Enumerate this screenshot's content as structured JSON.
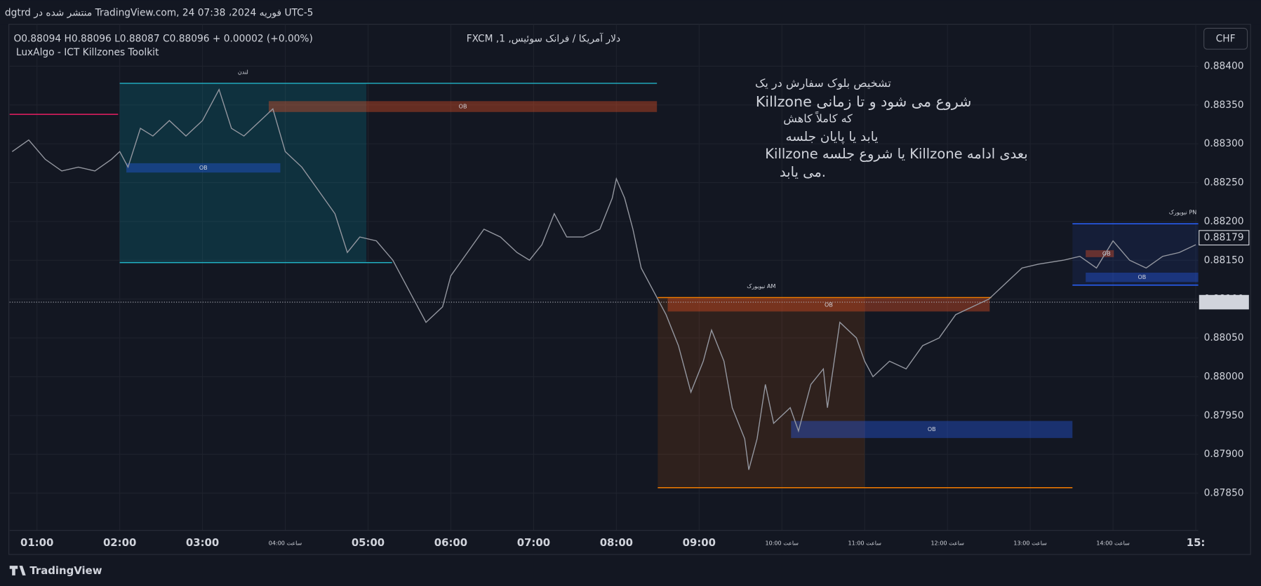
{
  "header": "dgtrd منتشر شده در TradingView.com, 24 فوریه 2024، 07:38 UTC-5",
  "symbol_title": "دلار آمریکا / فرانک سوئیس, 1, FXCM",
  "ohlc_text": "O0.88094 H0.88096 L0.88087 C0.88096 + 0.00002 (+0.00%)",
  "indicator": "LuxAlgo - ICT Killzones Toolkit",
  "currency": "CHF",
  "brand": "TradingView",
  "chart_data": {
    "type": "line",
    "color": "#9598a1",
    "annotation": [
      "تشخیص بلوک سفارش در یک",
      "Killzone شروع می شود و تا زمانی",
      "که کاملاً کاهش",
      "یابد یا پایان جلسه",
      "Killzone یا شروع جلسه Killzone بعدی ادامه",
      "می یابد."
    ],
    "x": [
      0.7,
      0.9,
      1.1,
      1.3,
      1.5,
      1.7,
      1.9,
      2.0,
      2.1,
      2.25,
      2.4,
      2.6,
      2.8,
      3.0,
      3.1,
      3.2,
      3.35,
      3.5,
      3.7,
      3.85,
      4.0,
      4.2,
      4.4,
      4.6,
      4.75,
      4.9,
      5.1,
      5.3,
      5.5,
      5.7,
      5.9,
      6.0,
      6.2,
      6.4,
      6.6,
      6.8,
      6.95,
      7.1,
      7.25,
      7.4,
      7.6,
      7.8,
      7.95,
      8.0,
      8.1,
      8.2,
      8.3,
      8.5,
      8.6,
      8.75,
      8.9,
      9.05,
      9.15,
      9.3,
      9.4,
      9.55,
      9.6,
      9.7,
      9.8,
      9.9,
      10.1,
      10.2,
      10.35,
      10.5,
      10.55,
      10.7,
      10.9,
      11.0,
      11.1,
      11.3,
      11.5,
      11.7,
      11.9,
      12.1,
      12.3,
      12.5,
      12.7,
      12.9,
      13.1,
      13.4,
      13.6,
      13.8,
      14.0,
      14.2,
      14.4,
      14.6,
      14.8,
      15.0
    ],
    "values": [
      0.8829,
      0.88305,
      0.8828,
      0.88265,
      0.8827,
      0.88265,
      0.8828,
      0.8829,
      0.8827,
      0.8832,
      0.8831,
      0.8833,
      0.8831,
      0.8833,
      0.8835,
      0.8837,
      0.8832,
      0.8831,
      0.8833,
      0.88345,
      0.8829,
      0.8827,
      0.8824,
      0.8821,
      0.8816,
      0.8818,
      0.88175,
      0.8815,
      0.8811,
      0.8807,
      0.8809,
      0.8813,
      0.8816,
      0.8819,
      0.8818,
      0.8816,
      0.8815,
      0.8817,
      0.8821,
      0.8818,
      0.8818,
      0.8819,
      0.8823,
      0.88255,
      0.8823,
      0.8819,
      0.8814,
      0.881,
      0.8808,
      0.8804,
      0.8798,
      0.8802,
      0.8806,
      0.8802,
      0.8796,
      0.8792,
      0.8788,
      0.8792,
      0.8799,
      0.8794,
      0.8796,
      0.8793,
      0.8799,
      0.8801,
      0.8796,
      0.8807,
      0.8805,
      0.8802,
      0.88,
      0.8802,
      0.8801,
      0.8804,
      0.8805,
      0.8808,
      0.8809,
      0.881,
      0.8812,
      0.8814,
      0.88145,
      0.8815,
      0.88155,
      0.8814,
      0.88175,
      0.8815,
      0.8814,
      0.88155,
      0.8816,
      0.8817
    ],
    "xlim": [
      0.67,
      15.03
    ],
    "ylim": [
      0.87802,
      0.88454
    ],
    "xticks": [
      {
        "value": 1,
        "label": "01:00"
      },
      {
        "value": 2,
        "label": "02:00"
      },
      {
        "value": 3,
        "label": "03:00"
      },
      {
        "value": 4,
        "label": "ساعت 04:00"
      },
      {
        "value": 5,
        "label": "05:00"
      },
      {
        "value": 6,
        "label": "06:00"
      },
      {
        "value": 7,
        "label": "07:00"
      },
      {
        "value": 8,
        "label": "08:00"
      },
      {
        "value": 9,
        "label": "09:00"
      },
      {
        "value": 10,
        "label": "ساعت 10:00"
      },
      {
        "value": 11,
        "label": "ساعت 11:00"
      },
      {
        "value": 12,
        "label": "ساعت 12:00"
      },
      {
        "value": 13,
        "label": "ساعت 13:00"
      },
      {
        "value": 14,
        "label": "ساعت 14:00"
      },
      {
        "value": 15,
        "label": "15:"
      }
    ],
    "yticks": [
      {
        "value": 0.8785,
        "label": "0.87850"
      },
      {
        "value": 0.879,
        "label": "0.87900"
      },
      {
        "value": 0.8795,
        "label": "0.87950"
      },
      {
        "value": 0.88,
        "label": "0.88000"
      },
      {
        "value": 0.8805,
        "label": "0.88050"
      },
      {
        "value": 0.881,
        "label": "0.88100"
      },
      {
        "value": 0.8815,
        "label": "0.88150"
      },
      {
        "value": 0.882,
        "label": "0.88200"
      },
      {
        "value": 0.8825,
        "label": "0.88250"
      },
      {
        "value": 0.883,
        "label": "0.88300"
      },
      {
        "value": 0.8835,
        "label": "0.88350"
      },
      {
        "value": 0.884,
        "label": "0.88400"
      }
    ],
    "grid": true,
    "last_price": {
      "value": 0.88096,
      "label": "0.88096"
    },
    "marker_price": {
      "value": 0.88179,
      "label": "0.88179"
    },
    "prior_level": {
      "price": 0.88338,
      "start": 0.67,
      "end": 1.98,
      "color": "#e91e63"
    },
    "killzones": [
      {
        "name": "لندن",
        "start": 2.0,
        "end": 4.98,
        "high": 0.88378,
        "low": 0.88147,
        "high_end": 8.49,
        "low_end": 5.29,
        "color": "#22b5c8",
        "fill": "rgba(0,188,212,0.16)"
      },
      {
        "name": "نیویورک AM",
        "start": 8.5,
        "end": 11.0,
        "high": 0.88102,
        "low": 0.87857,
        "high_end": 12.53,
        "low_end": 13.51,
        "color": "#f57c00",
        "fill": "rgba(255,109,0,0.12)"
      },
      {
        "name": "نیویورک PN",
        "start": 13.51,
        "end": 15.03,
        "high": 0.88197,
        "low": 0.88118,
        "high_end": 15.03,
        "low_end": 15.03,
        "color": "#2962ff",
        "fill": "rgba(41,98,255,0.10)"
      }
    ],
    "order_blocks": [
      {
        "label": "OB",
        "start": 3.8,
        "end": 8.49,
        "top": 0.88355,
        "bottom": 0.88341,
        "color": "#ff5722"
      },
      {
        "label": "OB",
        "start": 2.08,
        "end": 3.94,
        "top": 0.88275,
        "bottom": 0.88263,
        "color": "#2962ff"
      },
      {
        "label": "OB",
        "start": 8.62,
        "end": 12.51,
        "top": 0.88101,
        "bottom": 0.88084,
        "color": "#ff5722"
      },
      {
        "label": "OB",
        "start": 10.11,
        "end": 13.51,
        "top": 0.87943,
        "bottom": 0.87921,
        "color": "#2962ff"
      },
      {
        "label": "OB",
        "start": 13.67,
        "end": 14.01,
        "top": 0.88163,
        "bottom": 0.88154,
        "color": "#ff5722"
      },
      {
        "label": "OB",
        "start": 13.67,
        "end": 15.03,
        "top": 0.88134,
        "bottom": 0.88122,
        "color": "#2962ff"
      }
    ]
  }
}
